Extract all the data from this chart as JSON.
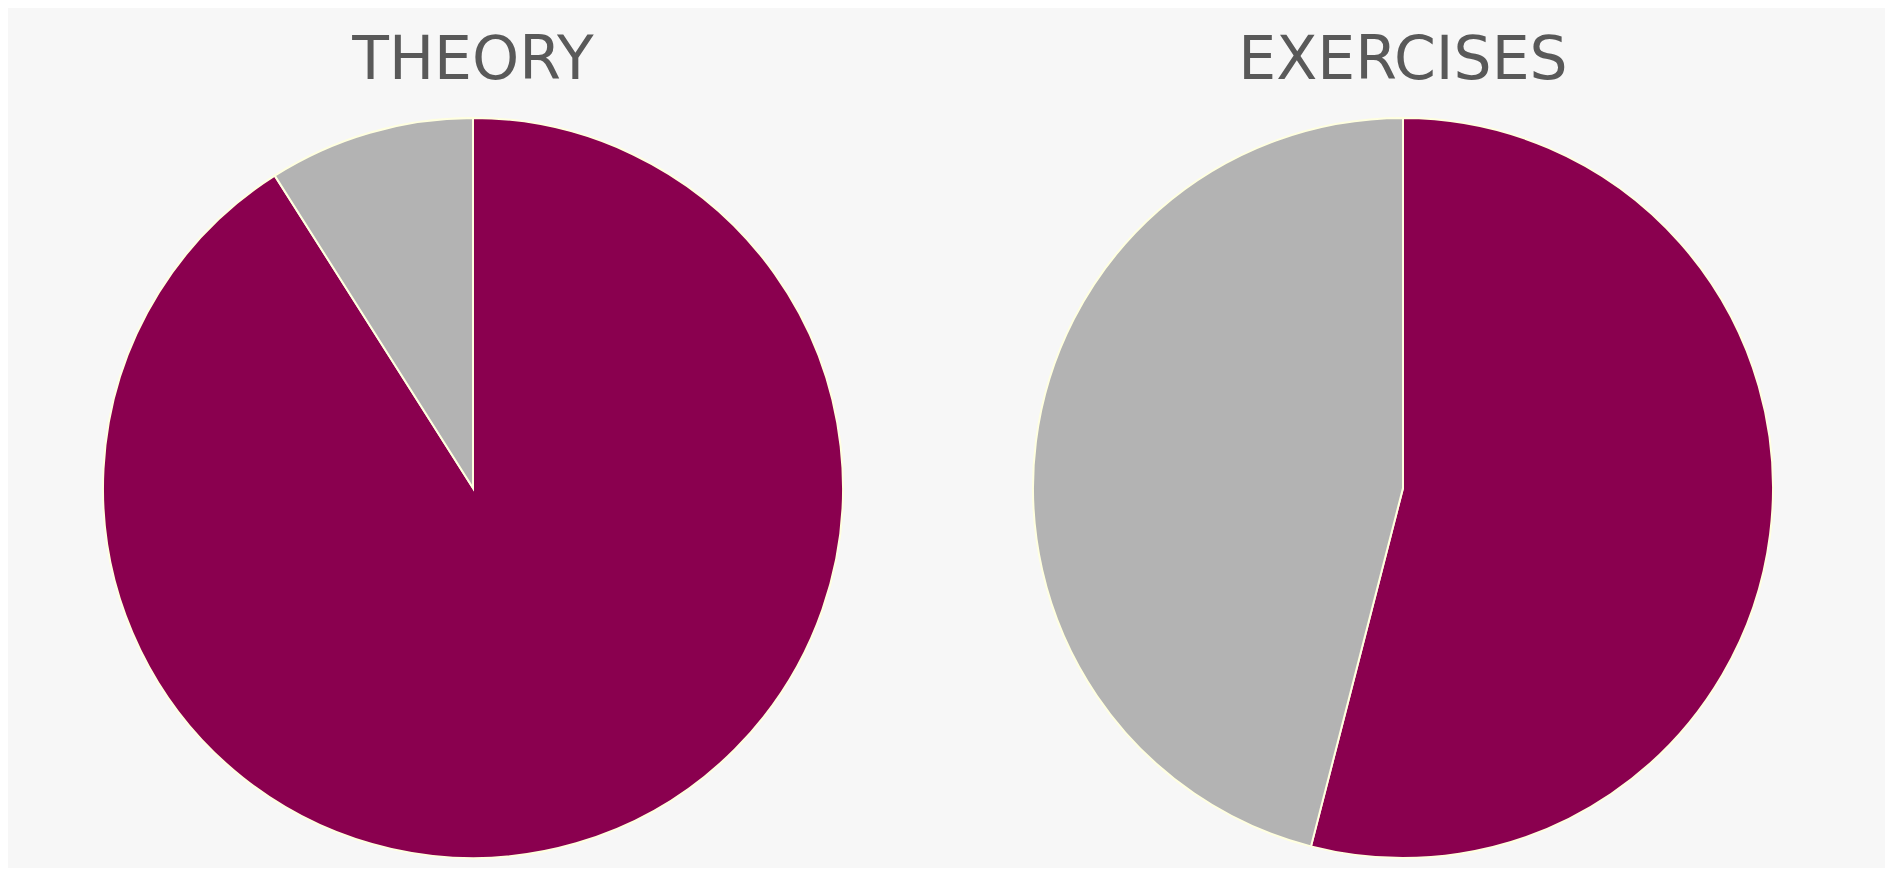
{
  "chart_data": [
    {
      "type": "pie",
      "title": "THEORY",
      "categories": [
        null,
        null
      ],
      "values": [
        91,
        9
      ],
      "colors": [
        "#8a004f",
        "#b3b3b3"
      ]
    },
    {
      "type": "pie",
      "title": "EXERCISES",
      "categories": [
        null,
        null
      ],
      "values": [
        54,
        46
      ],
      "colors": [
        "#8a004f",
        "#b3b3b3"
      ]
    }
  ]
}
